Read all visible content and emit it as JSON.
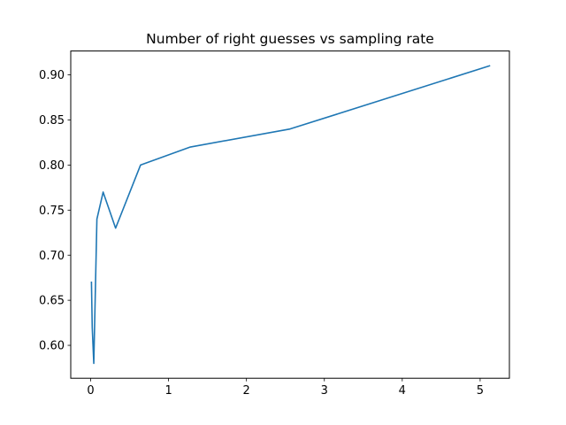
{
  "chart_data": {
    "type": "line",
    "title": "Number of right guesses vs sampling rate",
    "xlabel": "",
    "ylabel": "",
    "xlim": [
      -0.2558,
      5.3758
    ],
    "ylim": [
      0.5635,
      0.9265
    ],
    "xticks": [
      0,
      1,
      2,
      3,
      4,
      5
    ],
    "xtick_labels": [
      "0",
      "1",
      "2",
      "3",
      "4",
      "5"
    ],
    "yticks": [
      0.6,
      0.65,
      0.7,
      0.75,
      0.8,
      0.85,
      0.9
    ],
    "ytick_labels": [
      "0.60",
      "0.65",
      "0.70",
      "0.75",
      "0.80",
      "0.85",
      "0.90"
    ],
    "grid": false,
    "legend": "none",
    "series": [
      {
        "color": "#1f77b4",
        "x": [
          0.01,
          0.02,
          0.04,
          0.08,
          0.16,
          0.32,
          0.64,
          1.28,
          2.56,
          5.12
        ],
        "y": [
          0.67,
          0.62,
          0.58,
          0.74,
          0.77,
          0.73,
          0.8,
          0.82,
          0.84,
          0.91
        ]
      }
    ]
  }
}
